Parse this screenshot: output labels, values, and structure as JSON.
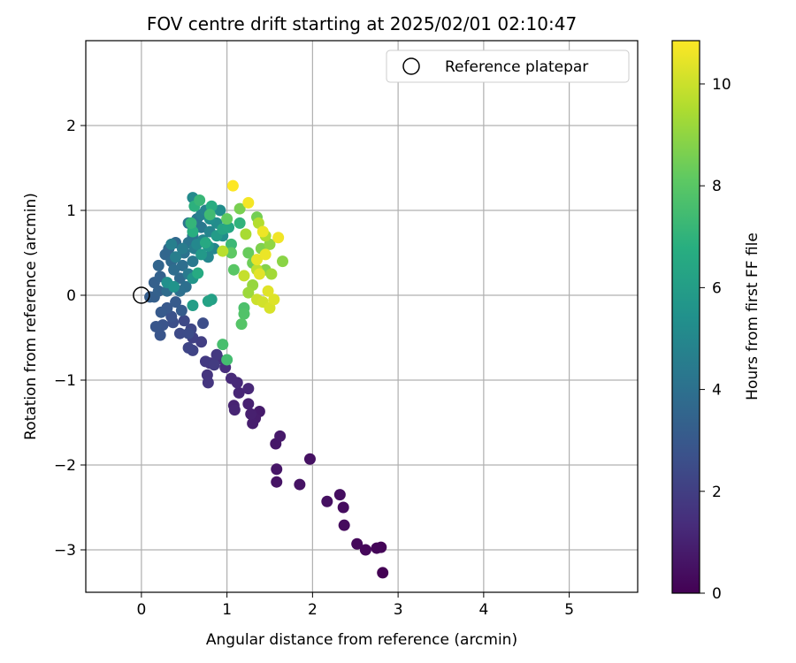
{
  "chart_data": {
    "type": "scatter",
    "title": "FOV centre drift starting at 2025/02/01 02:10:47",
    "xlabel": "Angular distance from reference (arcmin)",
    "ylabel": "Rotation from reference (arcmin)",
    "xlim": [
      -0.65,
      5.8
    ],
    "ylim": [
      -3.5,
      3.0
    ],
    "x_ticks": [
      0,
      1,
      2,
      3,
      4,
      5
    ],
    "y_ticks": [
      -3,
      -2,
      -1,
      0,
      1,
      2
    ],
    "grid": true,
    "legend": {
      "position": "top-right",
      "entries": [
        "Reference platepar"
      ]
    },
    "reference_point": {
      "x": 0,
      "y": 0
    },
    "colorbar": {
      "label": "Hours from first FF file",
      "range": [
        0,
        10.85
      ],
      "ticks": [
        0,
        2,
        4,
        6,
        8,
        10
      ],
      "colormap": "viridis"
    },
    "points": [
      {
        "x": 2.82,
        "y": -3.27,
        "c": 0.0
      },
      {
        "x": 2.8,
        "y": -2.97,
        "c": 0.1
      },
      {
        "x": 2.75,
        "y": -2.98,
        "c": 0.15
      },
      {
        "x": 2.62,
        "y": -3.0,
        "c": 0.2
      },
      {
        "x": 2.52,
        "y": -2.93,
        "c": 0.25
      },
      {
        "x": 2.37,
        "y": -2.71,
        "c": 0.3
      },
      {
        "x": 2.36,
        "y": -2.5,
        "c": 0.35
      },
      {
        "x": 2.32,
        "y": -2.35,
        "c": 0.4
      },
      {
        "x": 2.17,
        "y": -2.43,
        "c": 0.45
      },
      {
        "x": 1.97,
        "y": -1.93,
        "c": 0.5
      },
      {
        "x": 1.85,
        "y": -2.23,
        "c": 0.55
      },
      {
        "x": 1.58,
        "y": -2.2,
        "c": 0.6
      },
      {
        "x": 1.58,
        "y": -2.05,
        "c": 0.65
      },
      {
        "x": 1.57,
        "y": -1.75,
        "c": 0.7
      },
      {
        "x": 1.62,
        "y": -1.66,
        "c": 0.75
      },
      {
        "x": 1.38,
        "y": -1.37,
        "c": 0.8
      },
      {
        "x": 1.33,
        "y": -1.45,
        "c": 0.85
      },
      {
        "x": 1.3,
        "y": -1.51,
        "c": 0.9
      },
      {
        "x": 1.28,
        "y": -1.4,
        "c": 0.95
      },
      {
        "x": 1.25,
        "y": -1.28,
        "c": 1.0
      },
      {
        "x": 1.08,
        "y": -1.3,
        "c": 1.05
      },
      {
        "x": 1.09,
        "y": -1.35,
        "c": 1.1
      },
      {
        "x": 1.14,
        "y": -1.15,
        "c": 1.15
      },
      {
        "x": 1.25,
        "y": -1.1,
        "c": 1.2
      },
      {
        "x": 1.12,
        "y": -1.03,
        "c": 1.25
      },
      {
        "x": 1.05,
        "y": -0.98,
        "c": 1.3
      },
      {
        "x": 0.98,
        "y": -0.85,
        "c": 1.4
      },
      {
        "x": 0.9,
        "y": -0.75,
        "c": 1.5
      },
      {
        "x": 0.8,
        "y": -0.8,
        "c": 1.6
      },
      {
        "x": 0.77,
        "y": -0.94,
        "c": 1.65
      },
      {
        "x": 0.78,
        "y": -1.03,
        "c": 1.7
      },
      {
        "x": 0.88,
        "y": -0.7,
        "c": 1.8
      },
      {
        "x": 0.75,
        "y": -0.78,
        "c": 1.85
      },
      {
        "x": 0.85,
        "y": -0.82,
        "c": 1.9
      },
      {
        "x": 0.7,
        "y": -0.55,
        "c": 2.0
      },
      {
        "x": 0.6,
        "y": -0.5,
        "c": 2.1
      },
      {
        "x": 0.6,
        "y": -0.65,
        "c": 2.2
      },
      {
        "x": 0.55,
        "y": -0.62,
        "c": 2.25
      },
      {
        "x": 0.58,
        "y": -0.4,
        "c": 2.3
      },
      {
        "x": 0.5,
        "y": -0.3,
        "c": 2.4
      },
      {
        "x": 0.45,
        "y": -0.45,
        "c": 2.45
      },
      {
        "x": 0.55,
        "y": -0.45,
        "c": 2.5
      },
      {
        "x": 0.72,
        "y": -0.33,
        "c": 2.55
      },
      {
        "x": 0.37,
        "y": -0.32,
        "c": 2.6
      },
      {
        "x": 0.35,
        "y": -0.25,
        "c": 2.7
      },
      {
        "x": 0.25,
        "y": -0.35,
        "c": 2.8
      },
      {
        "x": 0.22,
        "y": -0.47,
        "c": 2.85
      },
      {
        "x": 0.17,
        "y": -0.37,
        "c": 2.9
      },
      {
        "x": 0.3,
        "y": -0.15,
        "c": 3.0
      },
      {
        "x": 0.23,
        "y": -0.2,
        "c": 3.05
      },
      {
        "x": 0.4,
        "y": -0.08,
        "c": 3.1
      },
      {
        "x": 0.47,
        "y": -0.18,
        "c": 3.15
      },
      {
        "x": 0.1,
        "y": -0.02,
        "c": 3.2
      },
      {
        "x": 0.15,
        "y": -0.02,
        "c": 3.25
      },
      {
        "x": 0.15,
        "y": 0.15,
        "c": 3.3
      },
      {
        "x": 0.2,
        "y": 0.05,
        "c": 3.35
      },
      {
        "x": 0.22,
        "y": 0.22,
        "c": 3.4
      },
      {
        "x": 0.2,
        "y": 0.35,
        "c": 3.5
      },
      {
        "x": 0.28,
        "y": 0.48,
        "c": 3.55
      },
      {
        "x": 0.32,
        "y": 0.55,
        "c": 3.6
      },
      {
        "x": 0.4,
        "y": 0.62,
        "c": 3.65
      },
      {
        "x": 0.35,
        "y": 0.4,
        "c": 3.7
      },
      {
        "x": 0.45,
        "y": 0.2,
        "c": 3.75
      },
      {
        "x": 0.3,
        "y": 0.05,
        "c": 3.8
      },
      {
        "x": 0.38,
        "y": 0.3,
        "c": 3.85
      },
      {
        "x": 0.48,
        "y": 0.35,
        "c": 3.9
      },
      {
        "x": 0.52,
        "y": 0.1,
        "c": 3.95
      },
      {
        "x": 0.45,
        "y": 0.05,
        "c": 4.0
      },
      {
        "x": 0.5,
        "y": 0.5,
        "c": 4.05
      },
      {
        "x": 0.55,
        "y": 0.62,
        "c": 4.1
      },
      {
        "x": 0.6,
        "y": 0.7,
        "c": 4.15
      },
      {
        "x": 0.55,
        "y": 0.85,
        "c": 4.2
      },
      {
        "x": 0.65,
        "y": 0.9,
        "c": 4.25
      },
      {
        "x": 0.7,
        "y": 0.8,
        "c": 4.3
      },
      {
        "x": 0.6,
        "y": 0.4,
        "c": 4.35
      },
      {
        "x": 0.55,
        "y": 0.25,
        "c": 4.4
      },
      {
        "x": 0.48,
        "y": 0.55,
        "c": 4.5
      },
      {
        "x": 0.62,
        "y": 0.55,
        "c": 4.55
      },
      {
        "x": 0.4,
        "y": 0.45,
        "c": 4.6
      },
      {
        "x": 0.35,
        "y": 0.6,
        "c": 4.65
      },
      {
        "x": 0.7,
        "y": 0.95,
        "c": 4.7
      },
      {
        "x": 0.75,
        "y": 1.0,
        "c": 4.8
      },
      {
        "x": 0.8,
        "y": 0.75,
        "c": 4.85
      },
      {
        "x": 0.72,
        "y": 0.65,
        "c": 4.9
      },
      {
        "x": 0.85,
        "y": 0.55,
        "c": 4.95
      },
      {
        "x": 0.78,
        "y": 0.45,
        "c": 5.0
      },
      {
        "x": 0.65,
        "y": 0.6,
        "c": 5.05
      },
      {
        "x": 0.6,
        "y": 1.15,
        "c": 5.1
      },
      {
        "x": 0.88,
        "y": 0.85,
        "c": 5.2
      },
      {
        "x": 0.92,
        "y": 1.0,
        "c": 5.25
      },
      {
        "x": 0.95,
        "y": 0.7,
        "c": 5.3
      },
      {
        "x": 0.8,
        "y": 0.9,
        "c": 5.35
      },
      {
        "x": 0.3,
        "y": 0.15,
        "c": 5.4
      },
      {
        "x": 0.38,
        "y": 0.1,
        "c": 5.5
      },
      {
        "x": 0.6,
        "y": 0.2,
        "c": 5.6
      },
      {
        "x": 0.78,
        "y": 0.58,
        "c": 5.7
      },
      {
        "x": 0.7,
        "y": 0.48,
        "c": 5.8
      },
      {
        "x": 0.88,
        "y": 0.7,
        "c": 5.9
      },
      {
        "x": 0.6,
        "y": -0.12,
        "c": 6.0
      },
      {
        "x": 0.82,
        "y": -0.05,
        "c": 6.1
      },
      {
        "x": 0.78,
        "y": -0.07,
        "c": 6.2
      },
      {
        "x": 0.95,
        "y": 0.78,
        "c": 6.3
      },
      {
        "x": 1.02,
        "y": 0.8,
        "c": 6.4
      },
      {
        "x": 0.75,
        "y": 0.62,
        "c": 6.5
      },
      {
        "x": 0.66,
        "y": 0.26,
        "c": 6.6
      },
      {
        "x": 0.82,
        "y": 1.05,
        "c": 6.7
      },
      {
        "x": 0.6,
        "y": 0.75,
        "c": 6.8
      },
      {
        "x": 0.62,
        "y": 1.05,
        "c": 6.9
      },
      {
        "x": 1.15,
        "y": 0.85,
        "c": 7.0
      },
      {
        "x": 0.58,
        "y": 0.85,
        "c": 7.1
      },
      {
        "x": 0.68,
        "y": 1.12,
        "c": 7.2
      },
      {
        "x": 1.05,
        "y": 0.6,
        "c": 7.3
      },
      {
        "x": 0.8,
        "y": 0.95,
        "c": 7.4
      },
      {
        "x": 1.0,
        "y": -0.76,
        "c": 7.5
      },
      {
        "x": 0.95,
        "y": -0.58,
        "c": 7.6
      },
      {
        "x": 1.2,
        "y": -0.15,
        "c": 7.7
      },
      {
        "x": 1.2,
        "y": -0.22,
        "c": 7.8
      },
      {
        "x": 1.17,
        "y": -0.34,
        "c": 7.9
      },
      {
        "x": 1.08,
        "y": 0.3,
        "c": 8.0
      },
      {
        "x": 1.05,
        "y": 0.5,
        "c": 8.1
      },
      {
        "x": 1.0,
        "y": 0.9,
        "c": 8.2
      },
      {
        "x": 1.25,
        "y": 0.5,
        "c": 8.3
      },
      {
        "x": 1.3,
        "y": 0.38,
        "c": 8.4
      },
      {
        "x": 1.35,
        "y": 0.92,
        "c": 8.5
      },
      {
        "x": 1.15,
        "y": 1.02,
        "c": 8.6
      },
      {
        "x": 1.4,
        "y": 0.55,
        "c": 8.7
      },
      {
        "x": 1.45,
        "y": 0.3,
        "c": 8.8
      },
      {
        "x": 1.65,
        "y": 0.4,
        "c": 8.9
      },
      {
        "x": 1.5,
        "y": 0.6,
        "c": 9.0
      },
      {
        "x": 1.3,
        "y": 0.12,
        "c": 9.1
      },
      {
        "x": 1.25,
        "y": 0.03,
        "c": 9.2
      },
      {
        "x": 1.52,
        "y": 0.25,
        "c": 9.3
      },
      {
        "x": 1.22,
        "y": 0.72,
        "c": 9.4
      },
      {
        "x": 1.45,
        "y": 0.7,
        "c": 9.5
      },
      {
        "x": 1.37,
        "y": 0.85,
        "c": 9.6
      },
      {
        "x": 0.95,
        "y": 0.52,
        "c": 9.7
      },
      {
        "x": 1.35,
        "y": 0.3,
        "c": 9.8
      },
      {
        "x": 1.2,
        "y": 0.23,
        "c": 9.9
      },
      {
        "x": 1.35,
        "y": -0.05,
        "c": 10.0
      },
      {
        "x": 1.42,
        "y": -0.08,
        "c": 10.1
      },
      {
        "x": 1.5,
        "y": -0.15,
        "c": 10.2
      },
      {
        "x": 1.55,
        "y": -0.05,
        "c": 10.3
      },
      {
        "x": 1.48,
        "y": 0.05,
        "c": 10.35
      },
      {
        "x": 1.38,
        "y": 0.25,
        "c": 10.4
      },
      {
        "x": 1.35,
        "y": 0.42,
        "c": 10.5
      },
      {
        "x": 1.45,
        "y": 0.48,
        "c": 10.55
      },
      {
        "x": 1.42,
        "y": 0.75,
        "c": 10.6
      },
      {
        "x": 1.6,
        "y": 0.68,
        "c": 10.65
      },
      {
        "x": 1.25,
        "y": 1.09,
        "c": 10.7
      },
      {
        "x": 1.07,
        "y": 1.29,
        "c": 10.85
      }
    ]
  }
}
